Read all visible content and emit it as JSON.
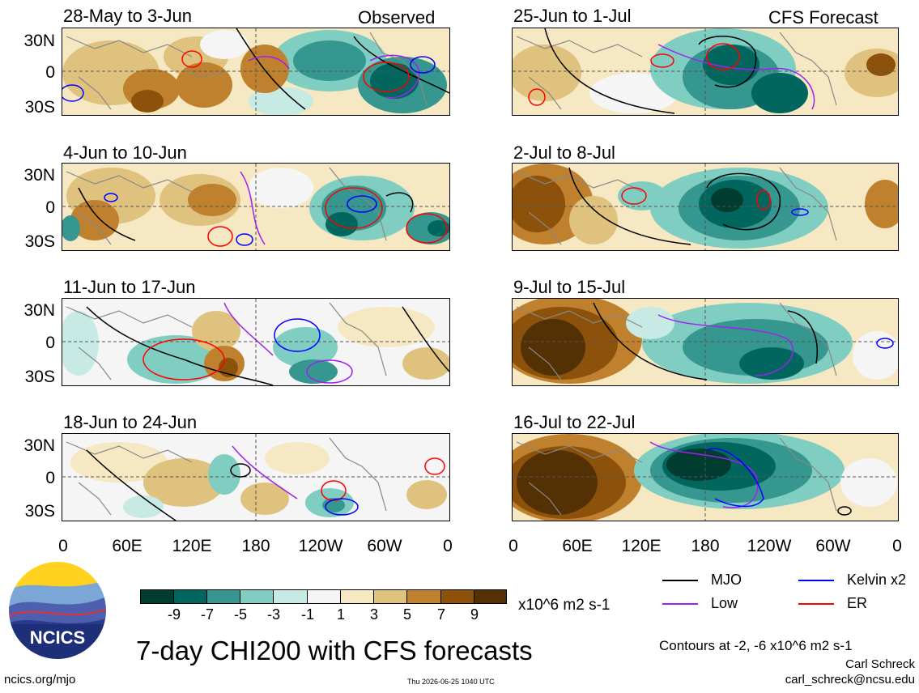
{
  "observed_label": "Observed",
  "forecast_label": "CFS Forecast",
  "left_panels": [
    "28-May to 3-Jun",
    "4-Jun to 10-Jun",
    "11-Jun to 17-Jun",
    "18-Jun to 24-Jun"
  ],
  "right_panels": [
    "25-Jun to 1-Jul",
    "2-Jul to 8-Jul",
    "9-Jul to 15-Jul",
    "16-Jul to 22-Jul"
  ],
  "lat_labels": [
    "30N",
    "0",
    "30S"
  ],
  "lon_labels": [
    "0",
    "60E",
    "120E",
    "180",
    "120W",
    "60W",
    "0"
  ],
  "colorbar": {
    "labels": [
      "-9",
      "-7",
      "-5",
      "-3",
      "-1",
      "1",
      "3",
      "5",
      "7",
      "9"
    ],
    "units": "x10^6 m2 s-1",
    "colors": [
      "#003c30",
      "#01665e",
      "#35978f",
      "#80cdc1",
      "#c7eae5",
      "#f5f5f5",
      "#f6e8c3",
      "#dfc27d",
      "#bf812d",
      "#8c510a",
      "#543005"
    ]
  },
  "legend": {
    "mjo": {
      "label": "MJO",
      "color": "#000000"
    },
    "low": {
      "label": "Low",
      "color": "#a020f0"
    },
    "kelvin": {
      "label": "Kelvin x2",
      "color": "#0000ff"
    },
    "er": {
      "label": "ER",
      "color": "#ff0000"
    }
  },
  "main_title": "7-day CHI200 with CFS forecasts",
  "contours_note": "Contours at -2, -6 x10^6 m2 s-1",
  "author": "Carl Schreck",
  "email": "carl_schreck@ncsu.edu",
  "website": "ncics.org/mjo",
  "timestamp": "Thu 2026-06-25 1040 UTC",
  "logo_text": "NCICS"
}
